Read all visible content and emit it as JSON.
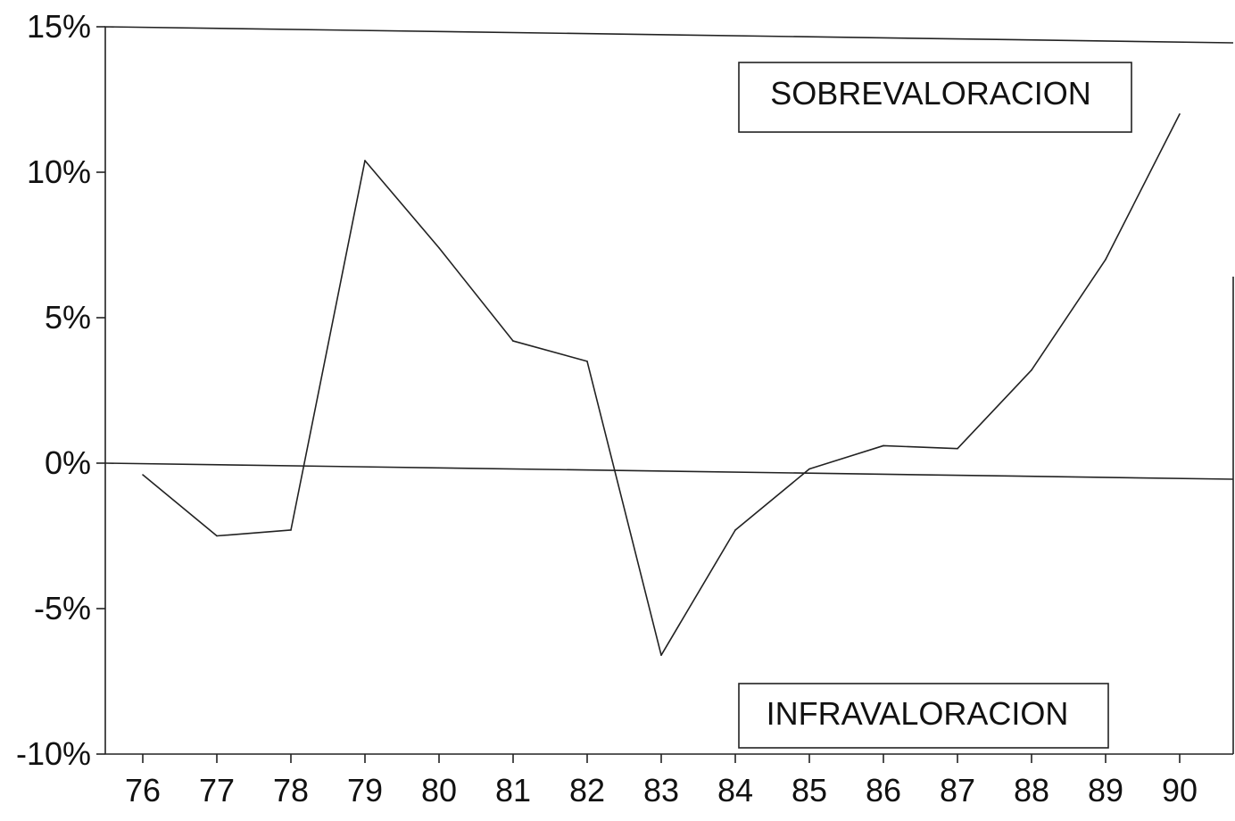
{
  "chart_data": {
    "type": "line",
    "title": "",
    "xlabel": "",
    "ylabel": "",
    "x": [
      "76",
      "77",
      "78",
      "79",
      "80",
      "81",
      "82",
      "83",
      "84",
      "85",
      "86",
      "87",
      "88",
      "89",
      "90"
    ],
    "series": [
      {
        "values": [
          -0.4,
          -2.5,
          -2.3,
          10.4,
          7.4,
          4.2,
          3.5,
          -6.6,
          -2.3,
          -0.2,
          0.6,
          0.5,
          3.2,
          7.0,
          12.0
        ]
      }
    ],
    "ylim": [
      -10,
      15
    ],
    "yticks": [
      15,
      10,
      5,
      0,
      -5,
      -10
    ],
    "ytick_labels": [
      "15%",
      "10%",
      "5%",
      "0%",
      "-5%",
      "-10%"
    ],
    "zero_line": true,
    "grid": false,
    "annotations": [
      {
        "text": "SOBREVALORACION",
        "position": "top-right"
      },
      {
        "text": "INFRAVALORACION",
        "position": "bottom-right"
      }
    ],
    "colors": {
      "line": "#222222",
      "background": "#ffffff"
    }
  }
}
